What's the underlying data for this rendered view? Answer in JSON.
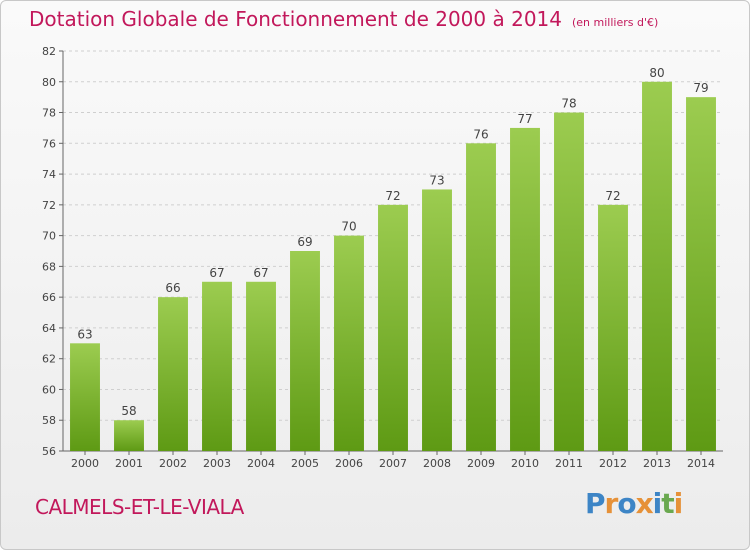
{
  "header": {
    "title": "Dotation Globale de Fonctionnement de 2000 à 2014",
    "subtitle": "(en milliers d'€)"
  },
  "footer": {
    "place": "CALMELS-ET-LE-VIALA",
    "logo": "Proxiti",
    "logo_colors": [
      "#3d85c6",
      "#e69138",
      "#3d85c6",
      "#e69138",
      "#3d85c6",
      "#6aa84f",
      "#e69138"
    ]
  },
  "chart_data": {
    "type": "bar",
    "title": "Dotation Globale de Fonctionnement de 2000 à 2014",
    "subtitle": "(en milliers d'€)",
    "categories": [
      "2000",
      "2001",
      "2002",
      "2003",
      "2004",
      "2005",
      "2006",
      "2007",
      "2008",
      "2009",
      "2010",
      "2011",
      "2012",
      "2013",
      "2014"
    ],
    "values": [
      63,
      58,
      66,
      67,
      67,
      69,
      70,
      72,
      73,
      76,
      77,
      78,
      72,
      80,
      79
    ],
    "ylim": [
      56,
      82
    ],
    "yticks": [
      56,
      58,
      60,
      62,
      64,
      66,
      68,
      70,
      72,
      74,
      76,
      78,
      80,
      82
    ],
    "grid": true,
    "data_labels": true,
    "bar_color_top": "#9ccc50",
    "bar_color_bottom": "#5e9a14",
    "title_color": "#c2185b"
  }
}
